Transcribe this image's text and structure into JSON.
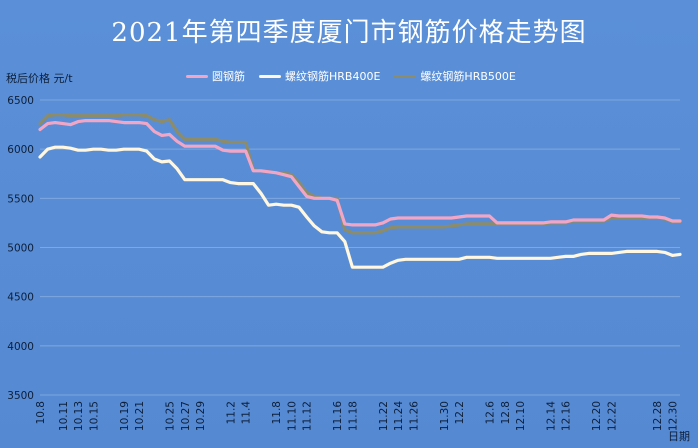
{
  "chart_data": {
    "type": "line",
    "title": "2021年第四季度厦门市钢筋价格走势图",
    "ylabel": "税后价格 元/t",
    "xlabel": "日期",
    "ylim": [
      3500,
      6500
    ],
    "yticks": [
      3500,
      4000,
      4500,
      5000,
      5500,
      6000,
      6500
    ],
    "x": [
      "10.8",
      "10.9",
      "10.10",
      "10.11",
      "10.12",
      "10.13",
      "10.14",
      "10.15",
      "10.16",
      "10.17",
      "10.18",
      "10.19",
      "10.20",
      "10.21",
      "10.22",
      "10.23",
      "10.24",
      "10.25",
      "10.26",
      "10.27",
      "10.28",
      "10.29",
      "10.30",
      "10.31",
      "11.1",
      "11.2",
      "11.3",
      "11.4",
      "11.5",
      "11.6",
      "11.7",
      "11.8",
      "11.9",
      "11.10",
      "11.11",
      "11.12",
      "11.13",
      "11.14",
      "11.15",
      "11.16",
      "11.17",
      "11.18",
      "11.19",
      "11.20",
      "11.21",
      "11.22",
      "11.23",
      "11.24",
      "11.25",
      "11.26",
      "11.27",
      "11.28",
      "11.29",
      "11.30",
      "12.1",
      "12.2",
      "12.3",
      "12.4",
      "12.5",
      "12.6",
      "12.7",
      "12.8",
      "12.9",
      "12.10",
      "12.11",
      "12.12",
      "12.13",
      "12.14",
      "12.15",
      "12.16",
      "12.17",
      "12.18",
      "12.19",
      "12.20",
      "12.21",
      "12.22",
      "12.23",
      "12.24",
      "12.25",
      "12.26",
      "12.27",
      "12.28",
      "12.29",
      "12.30",
      "12.31"
    ],
    "xtick_labels": [
      "10.8",
      "10.11",
      "10.13",
      "10.15",
      "10.19",
      "10.21",
      "10.25",
      "10.27",
      "10.29",
      "11.2",
      "11.4",
      "11.8",
      "11.10",
      "11.12",
      "11.16",
      "11.18",
      "11.22",
      "11.24",
      "11.26",
      "11.30",
      "12.2",
      "12.6",
      "12.8",
      "12.10",
      "12.14",
      "12.16",
      "12.20",
      "12.22",
      "12.28",
      "12.30"
    ],
    "series": [
      {
        "name": "圆钢筋",
        "color": "#f2a6c6",
        "values": [
          6200,
          6260,
          6270,
          6260,
          6250,
          6280,
          6290,
          6290,
          6290,
          6290,
          6280,
          6270,
          6270,
          6270,
          6260,
          6180,
          6140,
          6150,
          6080,
          6030,
          6030,
          6030,
          6030,
          6030,
          5990,
          5980,
          5980,
          5980,
          5780,
          5780,
          5770,
          5760,
          5740,
          5720,
          5620,
          5520,
          5500,
          5500,
          5500,
          5480,
          5240,
          5230,
          5230,
          5230,
          5230,
          5250,
          5290,
          5300,
          5300,
          5300,
          5300,
          5300,
          5300,
          5300,
          5300,
          5310,
          5320,
          5320,
          5320,
          5320,
          5250,
          5250,
          5250,
          5250,
          5250,
          5250,
          5250,
          5260,
          5260,
          5260,
          5280,
          5280,
          5280,
          5280,
          5280,
          5330,
          5320,
          5320,
          5320,
          5320,
          5310,
          5310,
          5300,
          5270,
          5270
        ]
      },
      {
        "name": "螺纹钢筋HRB400E",
        "color": "#fff7e0",
        "values": [
          5920,
          6000,
          6020,
          6020,
          6010,
          5990,
          5990,
          6000,
          6000,
          5990,
          5990,
          6000,
          6000,
          6000,
          5980,
          5900,
          5870,
          5880,
          5800,
          5690,
          5690,
          5690,
          5690,
          5690,
          5690,
          5660,
          5650,
          5650,
          5650,
          5550,
          5430,
          5440,
          5430,
          5430,
          5410,
          5310,
          5220,
          5160,
          5150,
          5150,
          5060,
          4800,
          4800,
          4800,
          4800,
          4800,
          4840,
          4870,
          4880,
          4880,
          4880,
          4880,
          4880,
          4880,
          4880,
          4880,
          4900,
          4900,
          4900,
          4900,
          4890,
          4890,
          4890,
          4890,
          4890,
          4890,
          4890,
          4890,
          4900,
          4910,
          4910,
          4930,
          4940,
          4940,
          4940,
          4940,
          4950,
          4960,
          4960,
          4960,
          4960,
          4960,
          4950,
          4920,
          4930
        ]
      },
      {
        "name": "螺纹钢筋HRB500E",
        "color": "#8c8c6a",
        "values": [
          6260,
          6340,
          6350,
          6350,
          6340,
          6340,
          6340,
          6340,
          6340,
          6340,
          6340,
          6350,
          6350,
          6350,
          6340,
          6300,
          6280,
          6300,
          6180,
          6100,
          6100,
          6100,
          6100,
          6100,
          6080,
          6070,
          6070,
          6070,
          5790,
          5780,
          5770,
          5760,
          5760,
          5740,
          5660,
          5560,
          5520,
          5500,
          5500,
          5500,
          5180,
          5150,
          5150,
          5150,
          5150,
          5170,
          5200,
          5210,
          5210,
          5210,
          5210,
          5210,
          5210,
          5210,
          5220,
          5230,
          5240,
          5240,
          5240,
          5240,
          5240,
          5240,
          5240,
          5240,
          5240,
          5240,
          5240,
          5250,
          5250,
          5250,
          5270,
          5270,
          5270,
          5270,
          5270,
          5300,
          5300,
          5300,
          5300,
          5300,
          5300,
          5300,
          5290,
          5260,
          5260
        ]
      }
    ]
  }
}
